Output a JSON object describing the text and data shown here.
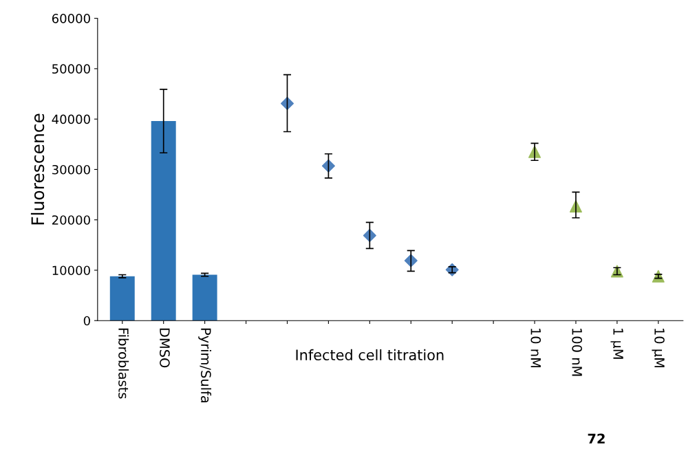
{
  "chart_data": {
    "type": "bar",
    "ylabel": "Fluorescence",
    "categories": [
      "Fibroblasts",
      "DMSO",
      "Pyrim/Sulfa",
      null,
      null,
      null,
      null,
      null,
      null,
      null,
      "10 nM",
      "100 nM",
      "1 µM",
      "10 µM"
    ],
    "series": [
      {
        "color": "#2e75b6",
        "values": [
          8800,
          39600,
          9100,
          null,
          null,
          null,
          null,
          null,
          null,
          null,
          null,
          null,
          null,
          null
        ],
        "errors": [
          300,
          [
            33300,
            45900
          ],
          300,
          null,
          null,
          null,
          null,
          null,
          null,
          null,
          null,
          null,
          null,
          null
        ]
      },
      {
        "type": "scatter",
        "marker": "diamond",
        "color": "#4f81bd",
        "values": [
          null,
          null,
          null,
          null,
          43100,
          30700,
          16900,
          11900,
          10100,
          null,
          null,
          null,
          null,
          null
        ],
        "errors": [
          null,
          null,
          null,
          null,
          [
            37500,
            48800
          ],
          [
            28300,
            33100
          ],
          [
            14300,
            19500
          ],
          [
            9800,
            13900
          ],
          [
            9500,
            10700
          ],
          null,
          null,
          null,
          null,
          null
        ]
      },
      {
        "type": "scatter",
        "marker": "triangle",
        "color": "#9bbb59",
        "values": [
          null,
          null,
          null,
          null,
          null,
          null,
          null,
          null,
          null,
          null,
          33500,
          22700,
          9800,
          8800
        ],
        "errors": [
          null,
          null,
          null,
          null,
          null,
          null,
          null,
          null,
          null,
          null,
          [
            31800,
            35200
          ],
          [
            20400,
            25500
          ],
          [
            9100,
            10500
          ],
          [
            8400,
            9200
          ]
        ]
      }
    ],
    "ylim": [
      0,
      60000
    ],
    "yticks": [
      0,
      10000,
      20000,
      30000,
      40000,
      50000,
      60000
    ],
    "annotations": [
      "Infected cell titration",
      "72"
    ]
  }
}
